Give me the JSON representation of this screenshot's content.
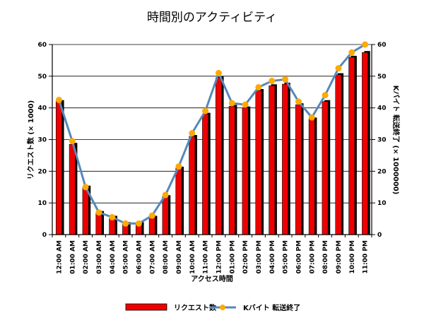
{
  "chart_data": {
    "type": "bar",
    "title": "時間別のアクティビティ",
    "xlabel": "アクセス時間",
    "ylabel": "リクエスト数 (× 1000)",
    "y2label": "Kバイト 転送終了 (× 1000000)",
    "ylim": [
      0,
      60
    ],
    "y2lim": [
      0,
      60
    ],
    "yticks": [
      0,
      10,
      20,
      30,
      40,
      50,
      60
    ],
    "grid": true,
    "legend_position": "bottom",
    "categories": [
      "12:00 AM",
      "01:00 AM",
      "02:00 AM",
      "03:00 AM",
      "04:00 AM",
      "05:00 AM",
      "06:00 AM",
      "07:00 AM",
      "08:00 AM",
      "09:00 AM",
      "10:00 AM",
      "11:00 AM",
      "12:00 PM",
      "01:00 PM",
      "02:00 PM",
      "03:00 PM",
      "04:00 PM",
      "05:00 PM",
      "06:00 PM",
      "07:00 PM",
      "08:00 PM",
      "09:00 PM",
      "10:00 PM",
      "11:00 PM"
    ],
    "series": [
      {
        "name": "リクエスト数",
        "type": "bar",
        "axis": "left",
        "color": "#ee0000",
        "values": [
          42,
          28.5,
          15,
          7,
          5.5,
          3.5,
          3.5,
          5.5,
          12,
          21,
          31,
          38,
          49.5,
          40.5,
          40,
          45.5,
          47,
          47.5,
          41,
          36.5,
          42,
          50.5,
          56,
          57.5
        ]
      },
      {
        "name": "Kバイト 転送終了",
        "type": "line",
        "axis": "right",
        "color": "#5588bb",
        "marker_color": "#ffaa00",
        "values": [
          42.5,
          29.5,
          15,
          7,
          5.5,
          3.5,
          3.5,
          6,
          12.5,
          21.5,
          32,
          39,
          51,
          41.5,
          41,
          46.5,
          48.5,
          49,
          42,
          37,
          44,
          52.5,
          57.5,
          60
        ]
      }
    ]
  }
}
